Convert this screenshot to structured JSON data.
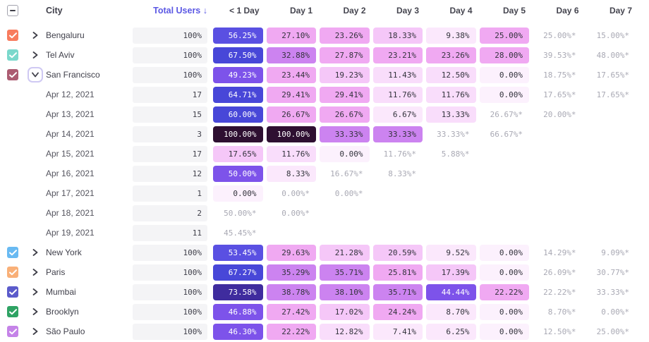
{
  "header": {
    "select_all_state": "indeterminate",
    "city": "City",
    "total_users": "Total Users",
    "sort_arrow": "↓",
    "day_columns": [
      "< 1 Day",
      "Day 1",
      "Day 2",
      "Day 3",
      "Day 4",
      "Day 5",
      "Day 6",
      "Day 7"
    ]
  },
  "colors": {
    "sort_accent": "#5B58E4",
    "header_text": "#3F3F4A",
    "muted_value_text": "#A9A9B4",
    "total_pill_bg": "#F4F4F6",
    "row_focus_ring": "#CFC9F3",
    "dark_cell_text_on_light": "#33333C",
    "light_cell_text_on_dark": "#FFFFFF"
  },
  "heatmap_scale": [
    {
      "min": 95,
      "bg": "#2E0F31",
      "text": "white"
    },
    {
      "min": 70,
      "bg": "#3F2C9E",
      "text": "white"
    },
    {
      "min": 60,
      "bg": "#4847D8",
      "text": "white"
    },
    {
      "min": 52,
      "bg": "#5A50E2",
      "text": "white"
    },
    {
      "min": 44,
      "bg": "#7D53EA",
      "text": "white"
    },
    {
      "min": 32,
      "bg": "#CC83F0",
      "text": "dark"
    },
    {
      "min": 22,
      "bg": "#F0A9F2",
      "text": "dark"
    },
    {
      "min": 16,
      "bg": "#F5C7F8",
      "text": "dark"
    },
    {
      "min": 10,
      "bg": "#F9DDFB",
      "text": "dark"
    },
    {
      "min": 5,
      "bg": "#FBE8FC",
      "text": "dark"
    },
    {
      "min": 0,
      "bg": "#FCF1FD",
      "text": "dark"
    }
  ],
  "rows": [
    {
      "type": "city",
      "label": "Bengaluru",
      "checkbox_color": "#F87C5E",
      "checked": true,
      "expanded": false,
      "total": "100%",
      "days": [
        "56.25%",
        "27.10%",
        "23.26%",
        "18.33%",
        "9.38%",
        "25.00%",
        "25.00%*",
        "15.00%*"
      ]
    },
    {
      "type": "city",
      "label": "Tel Aviv",
      "checkbox_color": "#7AD8CC",
      "checked": true,
      "expanded": false,
      "total": "100%",
      "days": [
        "67.50%",
        "32.88%",
        "27.87%",
        "23.21%",
        "23.26%",
        "28.00%",
        "39.53%*",
        "48.00%*"
      ]
    },
    {
      "type": "city",
      "label": "San Francisco",
      "checkbox_color": "#AC5C72",
      "checked": true,
      "expanded": true,
      "total": "100%",
      "days": [
        "49.23%",
        "23.44%",
        "19.23%",
        "11.43%",
        "12.50%",
        "0.00%",
        "18.75%*",
        "17.65%*"
      ]
    },
    {
      "type": "date",
      "label": "Apr 12, 2021",
      "total": "17",
      "days": [
        "64.71%",
        "29.41%",
        "29.41%",
        "11.76%",
        "11.76%",
        "0.00%",
        "17.65%*",
        "17.65%*"
      ]
    },
    {
      "type": "date",
      "label": "Apr 13, 2021",
      "total": "15",
      "days": [
        "60.00%",
        "26.67%",
        "26.67%",
        "6.67%",
        "13.33%",
        "26.67%*",
        "20.00%*",
        null
      ]
    },
    {
      "type": "date",
      "label": "Apr 14, 2021",
      "total": "3",
      "days": [
        "100.00%",
        "100.00%",
        "33.33%",
        "33.33%",
        "33.33%*",
        "66.67%*",
        null,
        null
      ]
    },
    {
      "type": "date",
      "label": "Apr 15, 2021",
      "total": "17",
      "days": [
        "17.65%",
        "11.76%",
        "0.00%",
        "11.76%*",
        "5.88%*",
        null,
        null,
        null
      ]
    },
    {
      "type": "date",
      "label": "Apr 16, 2021",
      "total": "12",
      "days": [
        "50.00%",
        "8.33%",
        "16.67%*",
        "8.33%*",
        null,
        null,
        null,
        null
      ]
    },
    {
      "type": "date",
      "label": "Apr 17, 2021",
      "total": "1",
      "days": [
        "0.00%",
        "0.00%*",
        "0.00%*",
        null,
        null,
        null,
        null,
        null
      ]
    },
    {
      "type": "date",
      "label": "Apr 18, 2021",
      "total": "2",
      "days": [
        "50.00%*",
        "0.00%*",
        null,
        null,
        null,
        null,
        null,
        null
      ]
    },
    {
      "type": "date",
      "label": "Apr 19, 2021",
      "total": "11",
      "days": [
        "45.45%*",
        null,
        null,
        null,
        null,
        null,
        null,
        null
      ]
    },
    {
      "type": "city",
      "label": "New York",
      "checkbox_color": "#69BAF2",
      "checked": true,
      "expanded": false,
      "total": "100%",
      "days": [
        "53.45%",
        "29.63%",
        "21.28%",
        "20.59%",
        "9.52%",
        "0.00%",
        "14.29%*",
        "9.09%*"
      ]
    },
    {
      "type": "city",
      "label": "Paris",
      "checkbox_color": "#F9B078",
      "checked": true,
      "expanded": false,
      "total": "100%",
      "days": [
        "67.27%",
        "35.29%",
        "35.71%",
        "25.81%",
        "17.39%",
        "0.00%",
        "26.09%*",
        "30.77%*"
      ]
    },
    {
      "type": "city",
      "label": "Mumbai",
      "checkbox_color": "#5B5BCB",
      "checked": true,
      "expanded": false,
      "total": "100%",
      "days": [
        "73.58%",
        "38.78%",
        "38.10%",
        "35.71%",
        "44.44%",
        "22.22%",
        "22.22%*",
        "33.33%*"
      ]
    },
    {
      "type": "city",
      "label": "Brooklyn",
      "checkbox_color": "#2FA364",
      "checked": true,
      "expanded": false,
      "total": "100%",
      "days": [
        "46.88%",
        "27.42%",
        "17.02%",
        "24.24%",
        "8.70%",
        "0.00%",
        "8.70%*",
        "0.00%*"
      ]
    },
    {
      "type": "city",
      "label": "São Paulo",
      "checkbox_color": "#C583E8",
      "checked": true,
      "expanded": false,
      "total": "100%",
      "days": [
        "46.30%",
        "22.22%",
        "12.82%",
        "7.41%",
        "6.25%",
        "0.00%",
        "12.50%*",
        "25.00%*"
      ]
    }
  ]
}
